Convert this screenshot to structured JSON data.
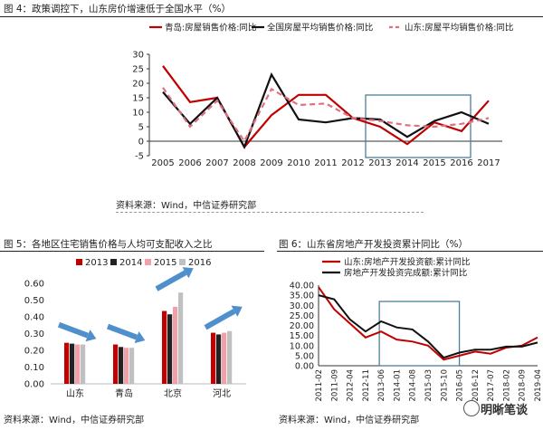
{
  "figure4": {
    "title": "图 4：政策调控下，山东房价增速低于全国水平（%）",
    "source": "资料来源：Wind，中信证券研究部"
  },
  "figure5": {
    "title": "图 5：各地区住宅销售价格与人均可支配收入之比",
    "source": "资料来源：Wind，中信证券研究部"
  },
  "figure6": {
    "title": "图 6：山东省房地产开发投资累计同比（%）",
    "source": "资料来源：Wind，中信证券研究部"
  },
  "watermark": {
    "text": "明晰笔谈",
    "icon": "wechat-icon"
  },
  "chart_data": [
    {
      "type": "line",
      "x": [
        "2005",
        "2006",
        "2007",
        "2008",
        "2009",
        "2010",
        "2011",
        "2012",
        "2013",
        "2014",
        "2015",
        "2016",
        "2017"
      ],
      "ylim": [
        -5,
        30
      ],
      "yticks": [
        -5,
        0,
        5,
        10,
        15,
        20,
        25,
        30
      ],
      "series": [
        {
          "name": "青岛:房屋销售价格:同比",
          "color": "#c00000",
          "style": "solid",
          "values": [
            26,
            13.5,
            15,
            -2,
            9,
            16,
            16,
            8,
            5,
            -1,
            6.5,
            3.5,
            14
          ]
        },
        {
          "name": "全国房屋平均销售价格:同比",
          "color": "#111111",
          "style": "solid",
          "values": [
            17,
            6,
            15,
            -2,
            23,
            7.5,
            6.5,
            8,
            7.5,
            1.5,
            7,
            10,
            6
          ]
        },
        {
          "name": "山东:房屋平均销售价格:同比",
          "color": "#e07080",
          "style": "dashed",
          "values": [
            18.5,
            5,
            14,
            0,
            18,
            12.5,
            13,
            8,
            7,
            5.5,
            5,
            6,
            8
          ]
        }
      ],
      "annotations": [
        {
          "type": "rectangle",
          "x_from": "2013",
          "x_to": "2016",
          "color": "#4a7f9a"
        }
      ]
    },
    {
      "type": "bar",
      "categories": [
        "山东",
        "青岛",
        "北京",
        "河北"
      ],
      "ylim": [
        0,
        0.6
      ],
      "yticks": [
        0,
        0.1,
        0.2,
        0.3,
        0.4,
        0.5,
        0.6
      ],
      "series": [
        {
          "name": "2013",
          "color": "#c00000",
          "values": [
            0.245,
            0.235,
            0.435,
            0.305
          ]
        },
        {
          "name": "2014",
          "color": "#222222",
          "values": [
            0.24,
            0.22,
            0.415,
            0.295
          ]
        },
        {
          "name": "2015",
          "color": "#f0a0a8",
          "values": [
            0.235,
            0.215,
            0.46,
            0.305
          ]
        },
        {
          "name": "2016",
          "color": "#c0c0c0",
          "values": [
            0.235,
            0.215,
            0.545,
            0.315
          ]
        }
      ],
      "annotations": [
        {
          "type": "arrows",
          "color": "#4f8fcc",
          "directions": [
            "down",
            "down",
            "up",
            "up"
          ]
        }
      ]
    },
    {
      "type": "line",
      "x": [
        "2011-02",
        "2011-09",
        "2012-04",
        "2012-11",
        "2013-06",
        "2014-01",
        "2014-08",
        "2015-03",
        "2015-10",
        "2016-05",
        "2016-12",
        "2017-07",
        "2018-02",
        "2018-09",
        "2019-04"
      ],
      "ylim": [
        0,
        40
      ],
      "yticks": [
        "0.00",
        "5.00",
        "10.00",
        "15.00",
        "20.00",
        "25.00",
        "30.00",
        "35.00",
        "40.00"
      ],
      "series": [
        {
          "name": "山东:房地产开发投资额:累计同比",
          "color": "#c00000",
          "style": "solid",
          "values": [
            39,
            28,
            21,
            14,
            17,
            13,
            12,
            10,
            3,
            5,
            7,
            6,
            9,
            10,
            14
          ]
        },
        {
          "name": "房地产开发投资完成额:累计同比",
          "color": "#111111",
          "style": "solid",
          "values": [
            35,
            33,
            23,
            17,
            22,
            19,
            18,
            12,
            4,
            6.5,
            8,
            8,
            9.5,
            9.5,
            11.5
          ]
        }
      ],
      "annotations": [
        {
          "type": "rectangle",
          "x_from": "2013-06",
          "x_to": "2016-05",
          "color": "#4a7f9a"
        }
      ]
    }
  ]
}
